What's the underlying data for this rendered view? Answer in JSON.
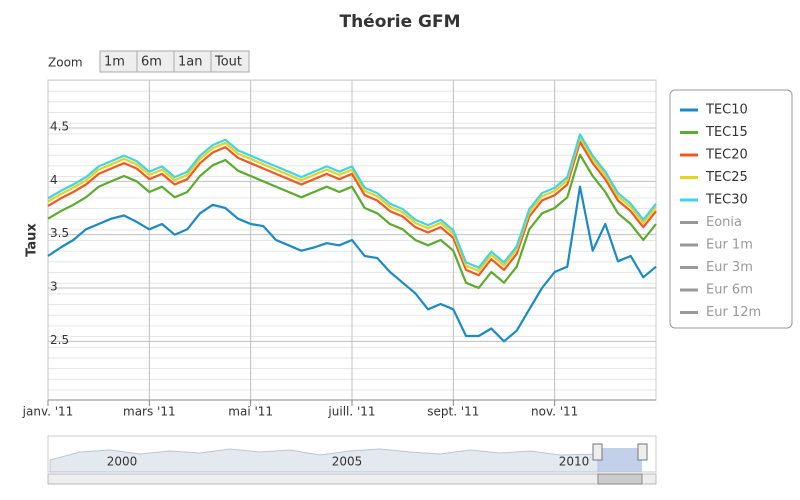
{
  "chart_data": {
    "type": "line",
    "title": "Théorie GFM",
    "zoom": {
      "label": "Zoom",
      "buttons": [
        "1m",
        "6m",
        "1an",
        "Tout"
      ]
    },
    "y_label": "Taux",
    "x": [
      0,
      0.25,
      0.5,
      0.75,
      1,
      1.25,
      1.5,
      1.75,
      2,
      2.25,
      2.5,
      2.75,
      3,
      3.25,
      3.5,
      3.75,
      4,
      4.25,
      4.5,
      4.75,
      5,
      5.25,
      5.5,
      5.75,
      6,
      6.25,
      6.5,
      6.75,
      7,
      7.25,
      7.5,
      7.75,
      8,
      8.25,
      8.5,
      8.75,
      9,
      9.25,
      9.5,
      9.75,
      10,
      10.25,
      10.5,
      10.75,
      11,
      11.25,
      11.5,
      11.75,
      12
    ],
    "xlim": [
      0,
      12
    ],
    "xticks": [
      {
        "value": 0,
        "label": "janv. '11"
      },
      {
        "value": 2,
        "label": "mars '11"
      },
      {
        "value": 4,
        "label": "mai '11"
      },
      {
        "value": 6,
        "label": "juill. '11"
      },
      {
        "value": 8,
        "label": "sept. '11"
      },
      {
        "value": 10,
        "label": "nov. '11"
      }
    ],
    "ylim": [
      1.95,
      4.95
    ],
    "yticks": [
      2.5,
      3,
      3.5,
      4,
      4.5
    ],
    "grid": true,
    "legend": "right",
    "series": [
      {
        "name": "TEC10",
        "color": "#1a8bc4",
        "values": [
          3.3,
          3.38,
          3.45,
          3.55,
          3.6,
          3.65,
          3.68,
          3.62,
          3.55,
          3.6,
          3.5,
          3.55,
          3.7,
          3.78,
          3.75,
          3.65,
          3.6,
          3.58,
          3.45,
          3.4,
          3.35,
          3.38,
          3.42,
          3.4,
          3.45,
          3.3,
          3.28,
          3.15,
          3.05,
          2.95,
          2.8,
          2.85,
          2.8,
          2.55,
          2.55,
          2.62,
          2.5,
          2.6,
          2.8,
          3.0,
          3.15,
          3.2,
          3.95,
          3.35,
          3.6,
          3.25,
          3.3,
          3.1,
          3.2
        ]
      },
      {
        "name": "TEC15",
        "color": "#5bab2c",
        "values": [
          3.65,
          3.72,
          3.78,
          3.85,
          3.95,
          4.0,
          4.05,
          4.0,
          3.9,
          3.95,
          3.85,
          3.9,
          4.05,
          4.15,
          4.2,
          4.1,
          4.05,
          4.0,
          3.95,
          3.9,
          3.85,
          3.9,
          3.95,
          3.9,
          3.95,
          3.75,
          3.7,
          3.6,
          3.55,
          3.45,
          3.4,
          3.45,
          3.35,
          3.05,
          3.0,
          3.15,
          3.05,
          3.2,
          3.55,
          3.7,
          3.75,
          3.85,
          4.25,
          4.05,
          3.9,
          3.7,
          3.6,
          3.45,
          3.6
        ]
      },
      {
        "name": "TEC20",
        "color": "#f05a22",
        "values": [
          3.77,
          3.84,
          3.9,
          3.97,
          4.07,
          4.12,
          4.17,
          4.12,
          4.02,
          4.07,
          3.97,
          4.02,
          4.17,
          4.27,
          4.32,
          4.22,
          4.17,
          4.12,
          4.07,
          4.02,
          3.97,
          4.02,
          4.07,
          4.02,
          4.07,
          3.87,
          3.82,
          3.72,
          3.67,
          3.57,
          3.52,
          3.57,
          3.47,
          3.17,
          3.12,
          3.27,
          3.17,
          3.32,
          3.67,
          3.82,
          3.87,
          3.97,
          4.37,
          4.17,
          4.02,
          3.82,
          3.72,
          3.57,
          3.72
        ]
      },
      {
        "name": "TEC25",
        "color": "#e8d21c",
        "values": [
          3.81,
          3.88,
          3.94,
          4.01,
          4.11,
          4.16,
          4.21,
          4.16,
          4.06,
          4.11,
          4.01,
          4.06,
          4.21,
          4.31,
          4.36,
          4.26,
          4.21,
          4.16,
          4.11,
          4.06,
          4.01,
          4.06,
          4.11,
          4.06,
          4.11,
          3.91,
          3.86,
          3.76,
          3.71,
          3.61,
          3.56,
          3.61,
          3.51,
          3.21,
          3.16,
          3.31,
          3.21,
          3.36,
          3.71,
          3.86,
          3.91,
          4.01,
          4.41,
          4.21,
          4.06,
          3.86,
          3.76,
          3.61,
          3.76
        ]
      },
      {
        "name": "TEC30",
        "color": "#3fd4e8",
        "values": [
          3.84,
          3.91,
          3.97,
          4.04,
          4.14,
          4.19,
          4.24,
          4.19,
          4.09,
          4.14,
          4.04,
          4.09,
          4.24,
          4.34,
          4.39,
          4.29,
          4.24,
          4.19,
          4.14,
          4.09,
          4.04,
          4.09,
          4.14,
          4.09,
          4.14,
          3.94,
          3.89,
          3.79,
          3.74,
          3.64,
          3.59,
          3.64,
          3.54,
          3.24,
          3.19,
          3.34,
          3.24,
          3.39,
          3.74,
          3.89,
          3.94,
          4.04,
          4.44,
          4.24,
          4.09,
          3.89,
          3.79,
          3.64,
          3.79
        ]
      }
    ],
    "hidden_series": {
      "color": "#999999",
      "names": [
        "Eonia",
        "Eur 1m",
        "Eur 3m",
        "Eur 6m",
        "Eur 12m"
      ]
    },
    "navigator_labels": [
      "2000",
      "2005",
      "2010"
    ]
  }
}
